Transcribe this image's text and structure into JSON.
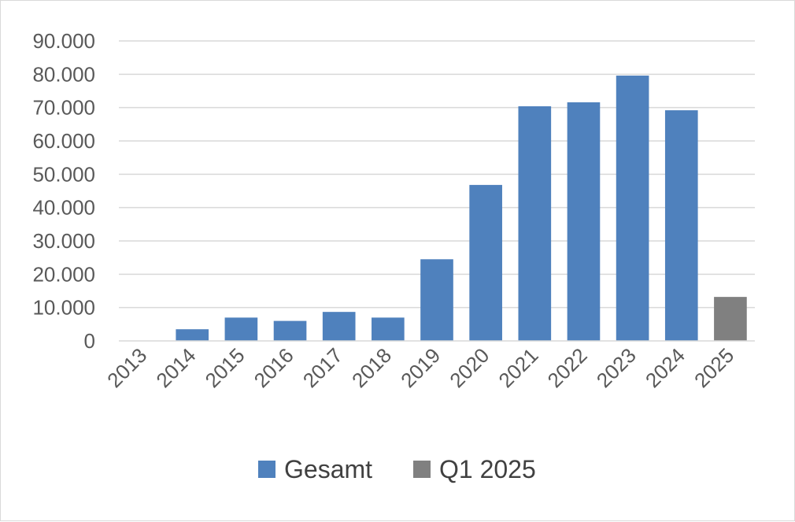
{
  "chart_data": {
    "type": "bar",
    "categories": [
      "2013",
      "2014",
      "2015",
      "2016",
      "2017",
      "2018",
      "2019",
      "2020",
      "2021",
      "2022",
      "2023",
      "2024",
      "2025"
    ],
    "series": [
      {
        "name": "Gesamt",
        "color": "#4f81bd",
        "values": [
          0,
          3500,
          7000,
          6000,
          8700,
          7000,
          24500,
          46800,
          70400,
          71600,
          79600,
          69200,
          null
        ]
      },
      {
        "name": "Q1 2025",
        "color": "#808080",
        "values": [
          null,
          null,
          null,
          null,
          null,
          null,
          null,
          null,
          null,
          null,
          null,
          null,
          13200
        ]
      }
    ],
    "y_ticks": [
      "0",
      "10.000",
      "20.000",
      "30.000",
      "40.000",
      "50.000",
      "60.000",
      "70.000",
      "80.000",
      "90.000"
    ],
    "ylim": [
      0,
      90000
    ],
    "grid": true,
    "legend_position": "bottom"
  }
}
